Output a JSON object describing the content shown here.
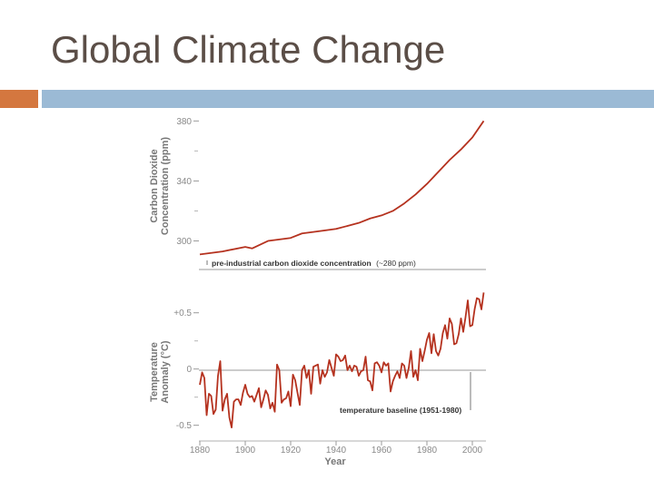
{
  "slide": {
    "title": "Global Climate Change"
  },
  "colors": {
    "accent_orange": "#d4773f",
    "accent_blue": "#9bbad5",
    "series": "#b5321f",
    "text": "#5b4e47"
  },
  "chart_data": [
    {
      "type": "line",
      "ylabel_line1": "Carbon Dioxide",
      "ylabel_line2": "Concentration (ppm)",
      "yticks": [
        300,
        340,
        380
      ],
      "ylim": [
        287,
        382
      ],
      "xlim": [
        1880,
        2006
      ],
      "annotation": {
        "bold": "pre-industrial carbon dioxide concentration",
        "paren": "(~280 ppm)"
      },
      "series": [
        {
          "name": "CO2",
          "x": [
            1880,
            1885,
            1890,
            1900,
            1903,
            1910,
            1920,
            1925,
            1930,
            1940,
            1945,
            1950,
            1955,
            1960,
            1965,
            1970,
            1975,
            1980,
            1985,
            1990,
            1995,
            2000,
            2005
          ],
          "values": [
            291,
            292,
            293,
            296,
            295,
            300,
            302,
            305,
            306,
            308,
            310,
            312,
            315,
            317,
            320,
            325,
            331,
            338,
            346,
            354,
            361,
            369,
            380
          ]
        }
      ]
    },
    {
      "type": "line",
      "ylabel_line1": "Temperature",
      "ylabel_line2": "Anomaly (°C)",
      "yticks": [
        "-0.5",
        "0",
        "+0.5"
      ],
      "ylim": [
        -0.64,
        0.78
      ],
      "xlim": [
        1880,
        2006
      ],
      "xlabel": "Year",
      "xticks": [
        1880,
        1900,
        1920,
        1940,
        1960,
        1980,
        2000
      ],
      "annotation": {
        "bold": "temperature baseline (1951-1980)"
      },
      "series": [
        {
          "name": "Temperature anomaly",
          "x": [
            1880,
            1881,
            1882,
            1883,
            1884,
            1885,
            1886,
            1887,
            1888,
            1889,
            1890,
            1891,
            1892,
            1893,
            1894,
            1895,
            1896,
            1897,
            1898,
            1899,
            1900,
            1901,
            1902,
            1903,
            1904,
            1905,
            1906,
            1907,
            1908,
            1909,
            1910,
            1911,
            1912,
            1913,
            1914,
            1915,
            1916,
            1917,
            1918,
            1919,
            1920,
            1921,
            1922,
            1923,
            1924,
            1925,
            1926,
            1927,
            1928,
            1929,
            1930,
            1931,
            1932,
            1933,
            1934,
            1935,
            1936,
            1937,
            1938,
            1939,
            1940,
            1941,
            1942,
            1943,
            1944,
            1945,
            1946,
            1947,
            1948,
            1949,
            1950,
            1951,
            1952,
            1953,
            1954,
            1955,
            1956,
            1957,
            1958,
            1959,
            1960,
            1961,
            1962,
            1963,
            1964,
            1965,
            1966,
            1967,
            1968,
            1969,
            1970,
            1971,
            1972,
            1973,
            1974,
            1975,
            1976,
            1977,
            1978,
            1979,
            1980,
            1981,
            1982,
            1983,
            1984,
            1985,
            1986,
            1987,
            1988,
            1989,
            1990,
            1991,
            1992,
            1993,
            1994,
            1995,
            1996,
            1997,
            1998,
            1999,
            2000,
            2001,
            2002,
            2003,
            2004,
            2005
          ],
          "values": [
            -0.14,
            -0.03,
            -0.08,
            -0.41,
            -0.22,
            -0.24,
            -0.4,
            -0.36,
            -0.06,
            0.07,
            -0.37,
            -0.27,
            -0.22,
            -0.43,
            -0.52,
            -0.29,
            -0.27,
            -0.27,
            -0.32,
            -0.21,
            -0.14,
            -0.22,
            -0.25,
            -0.24,
            -0.29,
            -0.23,
            -0.17,
            -0.34,
            -0.27,
            -0.19,
            -0.23,
            -0.35,
            -0.3,
            -0.38,
            0.04,
            -0.01,
            -0.3,
            -0.27,
            -0.26,
            -0.2,
            -0.33,
            -0.05,
            -0.1,
            -0.21,
            -0.32,
            -0.01,
            0.03,
            -0.08,
            -0.01,
            -0.22,
            0.02,
            0.03,
            0.04,
            -0.13,
            -0.01,
            -0.07,
            -0.03,
            0.08,
            0.01,
            -0.06,
            0.13,
            0.11,
            0.07,
            0.08,
            0.12,
            -0.01,
            0.03,
            -0.02,
            0.03,
            0.02,
            -0.06,
            -0.02,
            -0.01,
            0.11,
            -0.1,
            -0.11,
            -0.19,
            0.05,
            0.06,
            0.03,
            -0.03,
            0.06,
            0.03,
            0.05,
            -0.2,
            -0.11,
            -0.06,
            -0.02,
            -0.08,
            0.05,
            0.03,
            -0.08,
            0.01,
            0.16,
            -0.07,
            -0.01,
            -0.1,
            0.18,
            0.07,
            0.16,
            0.26,
            0.32,
            0.14,
            0.31,
            0.16,
            0.12,
            0.18,
            0.32,
            0.39,
            0.27,
            0.45,
            0.4,
            0.22,
            0.23,
            0.31,
            0.45,
            0.33,
            0.46,
            0.61,
            0.38,
            0.39,
            0.53,
            0.63,
            0.62,
            0.53,
            0.68
          ]
        }
      ]
    }
  ]
}
